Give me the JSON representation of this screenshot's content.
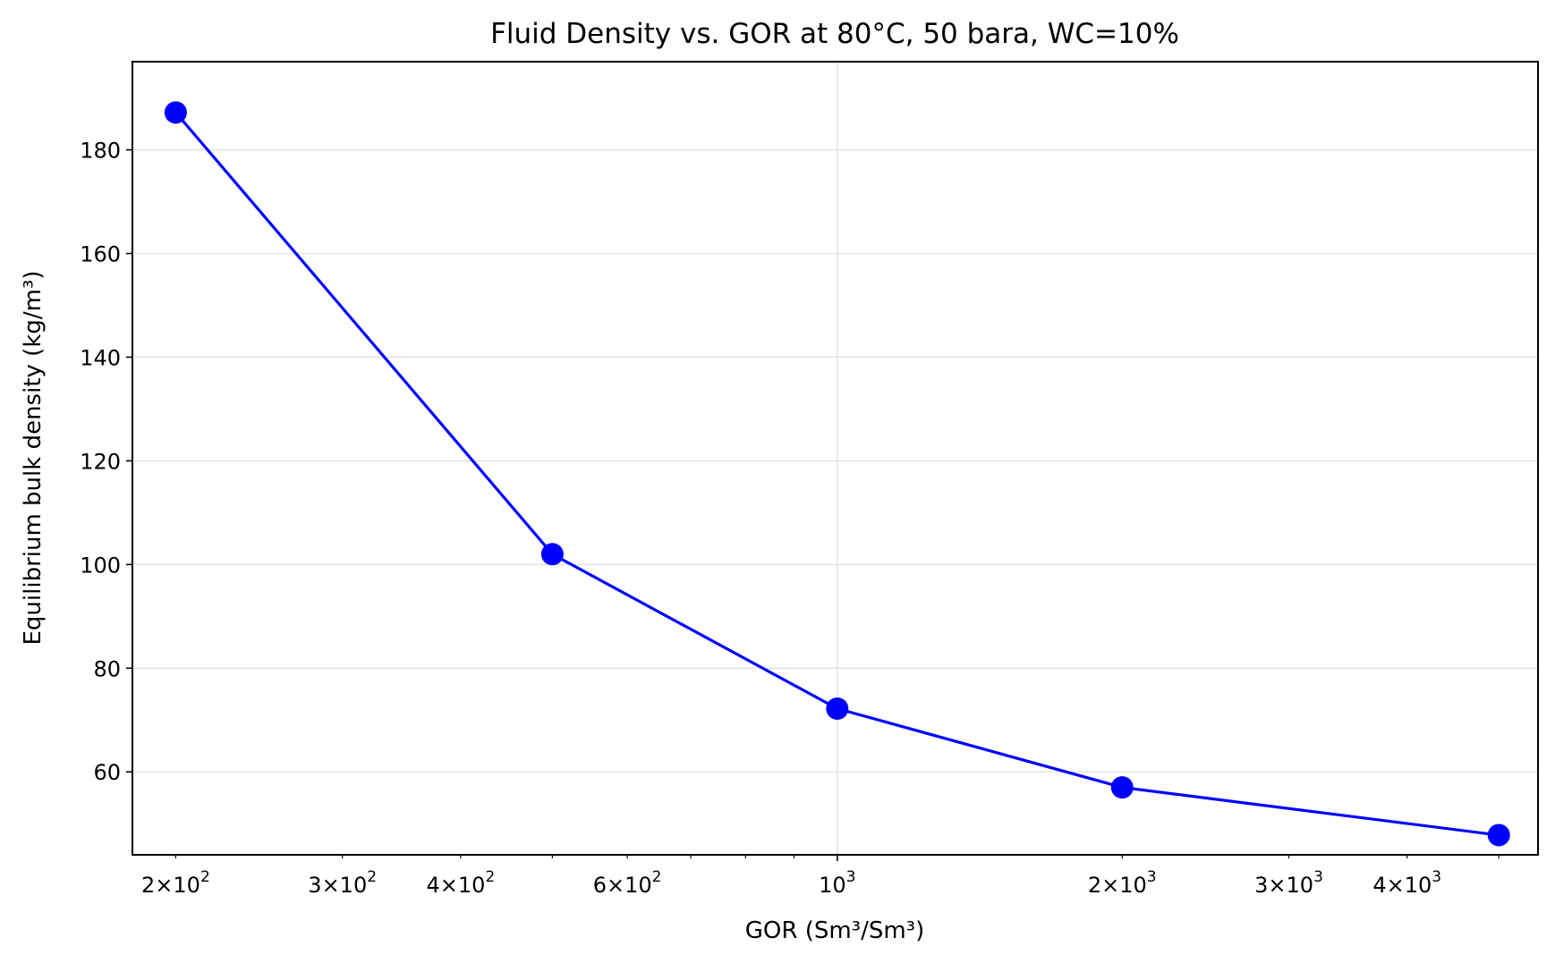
{
  "chart_data": {
    "type": "line",
    "title": "Fluid Density vs. GOR at 80°C, 50 bara, WC=10%",
    "xlabel": "GOR (Sm³/Sm³)",
    "ylabel": "Equilibrium bulk density (kg/m³)",
    "xscale": "log",
    "xlim": [
      180,
      5500
    ],
    "ylim": [
      44,
      197
    ],
    "grid": true,
    "x_ticks_major": [
      {
        "value": 1000,
        "base": "10",
        "exp": "3"
      }
    ],
    "x_ticks_labeled_minor": [
      {
        "value": 200,
        "mant": "2",
        "base": "10",
        "exp": "2"
      },
      {
        "value": 300,
        "mant": "3",
        "base": "10",
        "exp": "2"
      },
      {
        "value": 400,
        "mant": "4",
        "base": "10",
        "exp": "2"
      },
      {
        "value": 600,
        "mant": "6",
        "base": "10",
        "exp": "2"
      },
      {
        "value": 2000,
        "mant": "2",
        "base": "10",
        "exp": "3"
      },
      {
        "value": 3000,
        "mant": "3",
        "base": "10",
        "exp": "3"
      },
      {
        "value": 4000,
        "mant": "4",
        "base": "10",
        "exp": "3"
      }
    ],
    "x_ticks_unlabeled_minor": [
      500,
      700,
      800,
      900,
      5000
    ],
    "y_ticks": [
      60,
      80,
      100,
      120,
      140,
      160,
      180
    ],
    "series": [
      {
        "color": "#0000ff",
        "marker": "circle",
        "x": [
          200,
          500,
          1000,
          2000,
          5000
        ],
        "y": [
          187.2,
          102.0,
          72.2,
          57.0,
          47.8
        ]
      }
    ]
  }
}
